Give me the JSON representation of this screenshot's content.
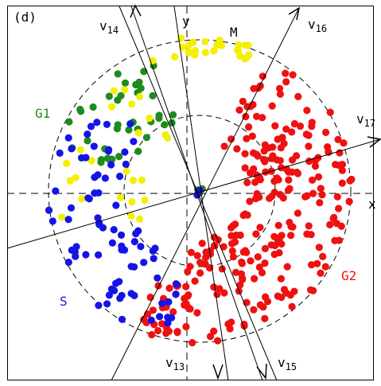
{
  "panel_label": "(d)",
  "axes": {
    "x": "x",
    "y": "y"
  },
  "labels": {
    "M": "M",
    "G1": "G1",
    "G2": "G2",
    "S": "S"
  },
  "vectors": [
    {
      "id": "v13",
      "prefix": "v",
      "sub": "13"
    },
    {
      "id": "v14",
      "prefix": "v",
      "sub": "14"
    },
    {
      "id": "v15",
      "prefix": "v",
      "sub": "15"
    },
    {
      "id": "v16",
      "prefix": "v",
      "sub": "16"
    },
    {
      "id": "v17",
      "prefix": "v",
      "sub": "17"
    }
  ],
  "colors": {
    "G1": "#1f8a1f",
    "M": "#f4f000",
    "G2": "#ee1111",
    "S": "#1414e6",
    "lines": "#000000"
  }
}
